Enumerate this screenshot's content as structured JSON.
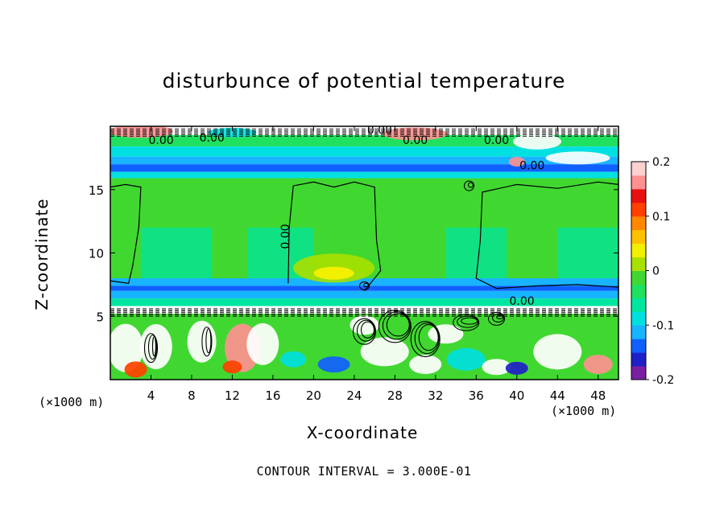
{
  "chart_data": {
    "type": "heatmap",
    "title": "disturbunce of potential temperature",
    "xlabel": "X-coordinate",
    "ylabel": "Z-coordinate",
    "x_unit": "(×1000 m)",
    "y_unit": "(×1000 m)",
    "xlim": [
      0,
      50
    ],
    "ylim": [
      0,
      20
    ],
    "x_ticks": [
      4,
      8,
      12,
      16,
      20,
      24,
      28,
      32,
      36,
      40,
      44,
      48
    ],
    "y_ticks": [
      5,
      10,
      15
    ],
    "colorbar": {
      "min": -0.2,
      "max": 0.2,
      "tick_values": [
        0.2,
        0.1,
        0,
        -0.1,
        -0.2
      ],
      "tick_labels": [
        "0.2",
        "0.1",
        "0",
        "-0.1",
        "-0.2"
      ],
      "colors": [
        "#7a1fa2",
        "#2020c8",
        "#1060ff",
        "#18b4ff",
        "#00e0e0",
        "#00e6a0",
        "#20e060",
        "#40d830",
        "#a8e000",
        "#f0f000",
        "#ffc000",
        "#ff8800",
        "#ff4000",
        "#e81010",
        "#ff9090",
        "#ffd0d0"
      ]
    },
    "contour_labels": [
      "0.00",
      "0.00",
      "0.00",
      "0.00",
      "0.00",
      "0.00",
      "0.00",
      "0.00"
    ],
    "contour_interval": "CONTOUR INTERVAL = 3.000E-01",
    "grid": false
  }
}
